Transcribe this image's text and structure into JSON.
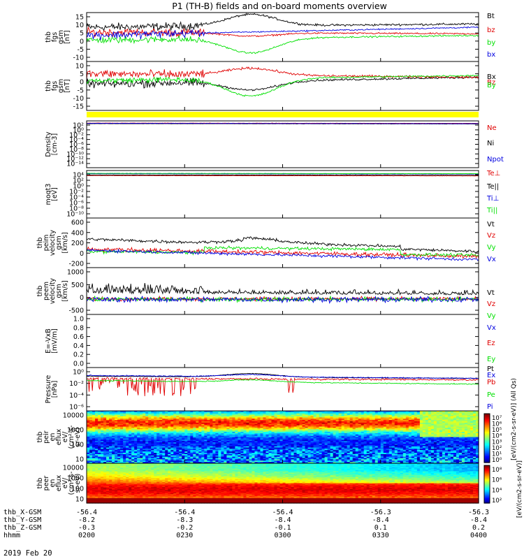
{
  "title": "P1 (TH-B) fields and on-board moments overview",
  "date_label": "2019 Feb 20",
  "colors": {
    "black": "#000000",
    "red": "#e00000",
    "green": "#00e000",
    "blue": "#0000e0",
    "yellow": "#ffff00"
  },
  "chart_data": [
    {
      "type": "line",
      "id": "fgs",
      "ylabel_lines": [
        "thb",
        "fgs",
        "gsm",
        "[nT]"
      ],
      "ylim": [
        -15,
        15
      ],
      "ytick_labels": [
        "15",
        "10",
        "5",
        "0",
        "-5",
        "-10"
      ],
      "series": [
        {
          "name": "Bt",
          "color": "black",
          "kind": "fgs_bt"
        },
        {
          "name": "bz",
          "color": "red",
          "kind": "fgs_bz"
        },
        {
          "name": "by",
          "color": "green",
          "kind": "fgs_by"
        },
        {
          "name": "bx",
          "color": "blue",
          "kind": "fgs_bx"
        }
      ]
    },
    {
      "type": "line",
      "id": "fgs2",
      "ylabel_lines": [
        "thb",
        "fgs",
        "gsm",
        "[nT]"
      ],
      "ylim": [
        -18,
        10
      ],
      "ytick_labels": [
        "10",
        "5",
        "0",
        "-5",
        "-10",
        "-15"
      ],
      "series": [
        {
          "name": "Bx",
          "color": "black",
          "kind": "fgs2_bx"
        },
        {
          "name": "Bz",
          "color": "red",
          "kind": "fgs2_bz"
        },
        {
          "name": "By",
          "color": "green",
          "kind": "fgs2_by"
        }
      ]
    },
    {
      "type": "line",
      "id": "density",
      "log": true,
      "ylabel_lines": [
        "Density",
        "[cm-3]"
      ],
      "ylim_log": [
        -15,
        2
      ],
      "ytick_labels": [
        "10²",
        "10⁰",
        "10⁻²",
        "10⁻⁴",
        "10⁻⁶",
        "10⁻⁸",
        "10⁻¹⁰",
        "10⁻¹²",
        "10⁻¹⁴"
      ],
      "series": [
        {
          "name": "Ne",
          "color": "red",
          "level": 1.2
        },
        {
          "name": "Ni",
          "color": "black",
          "level": 1.0
        },
        {
          "name": "Npot",
          "color": "blue",
          "level": 1.1
        }
      ]
    },
    {
      "type": "line",
      "id": "temp",
      "log": true,
      "ylabel_lines": [
        "moqt3",
        "[eV]"
      ],
      "ylim_log": [
        -11,
        4
      ],
      "ytick_labels": [
        "10⁴",
        "10²",
        "10⁰",
        "10⁻²",
        "10⁻⁴",
        "10⁻⁶",
        "10⁻⁸",
        "10⁻¹⁰"
      ],
      "series": [
        {
          "name": "Te⊥",
          "color": "red",
          "level": 2.4
        },
        {
          "name": "Te||",
          "color": "black",
          "level": 2.6
        },
        {
          "name": "Ti⊥",
          "color": "blue",
          "level": 3.0
        },
        {
          "name": "Ti||",
          "color": "green",
          "level": 3.1
        }
      ]
    },
    {
      "type": "line",
      "id": "peim",
      "ylabel_lines": [
        "thb",
        "peim",
        "velocity",
        "gsm",
        "[km/s]"
      ],
      "ylim": [
        -200,
        600
      ],
      "ytick_labels": [
        "600",
        "400",
        "200",
        "0",
        "-200"
      ],
      "series": [
        {
          "name": "Vt",
          "color": "black",
          "kind": "peim_vt"
        },
        {
          "name": "Vz",
          "color": "red",
          "kind": "peim_vz"
        },
        {
          "name": "Vy",
          "color": "green",
          "kind": "peim_vy"
        },
        {
          "name": "Vx",
          "color": "blue",
          "kind": "peim_vx"
        }
      ]
    },
    {
      "type": "line",
      "id": "peem",
      "ylabel_lines": [
        "thb",
        "peem",
        "velocity",
        "gsm",
        "[km/s]"
      ],
      "ylim": [
        -700,
        1400
      ],
      "ytick_labels": [
        "1000",
        "500",
        "0",
        "-500"
      ],
      "series": [
        {
          "name": "Vt",
          "color": "black",
          "kind": "peem_vt"
        },
        {
          "name": "Vz",
          "color": "red",
          "kind": "peem_vz"
        },
        {
          "name": "Vy",
          "color": "green",
          "kind": "peem_vy"
        },
        {
          "name": "Vx",
          "color": "blue",
          "kind": "peem_vx"
        }
      ]
    },
    {
      "type": "line",
      "id": "efield",
      "ylabel_lines": [
        "E=-VxB",
        "[mV/m]"
      ],
      "ylim": [
        0,
        1
      ],
      "ytick_labels": [
        "1.0",
        "0.8",
        "0.6",
        "0.4",
        "0.2",
        "0.0"
      ],
      "series": [
        {
          "name": "Ez",
          "color": "red"
        },
        {
          "name": "Ey",
          "color": "green"
        },
        {
          "name": "Ex",
          "color": "blue"
        }
      ]
    },
    {
      "type": "line",
      "id": "pressure",
      "log": true,
      "ylabel_lines": [
        "Pressure",
        "[nPa]"
      ],
      "ylim_log": [
        -6,
        0
      ],
      "ytick_labels": [
        "10⁰",
        "10⁻²",
        "10⁻⁴",
        "10⁻⁶"
      ],
      "series": [
        {
          "name": "Pt",
          "color": "black",
          "kind": "p_pt"
        },
        {
          "name": "Pb",
          "color": "red",
          "kind": "p_pb"
        },
        {
          "name": "Pe",
          "color": "green",
          "kind": "p_pe"
        },
        {
          "name": "Pi",
          "color": "blue",
          "kind": "p_pi"
        }
      ]
    },
    {
      "type": "heatmap",
      "id": "peir",
      "ylabel_lines": [
        "thb",
        "peir",
        "en",
        "eflux",
        "eV/",
        "(cm²-s-",
        "sr-eV)"
      ],
      "ytick_labels": [
        "10000",
        "1000",
        "100",
        "10"
      ],
      "kind": "ion"
    },
    {
      "type": "heatmap",
      "id": "peer",
      "ylabel_lines": [
        "thb",
        "peer",
        "en",
        "eflux",
        "eV/",
        "(cm²-s-",
        "sr-eV)"
      ],
      "ytick_labels": [
        "10000",
        "1000",
        "100",
        "10"
      ],
      "kind": "electron"
    }
  ],
  "colorbars": {
    "ion": {
      "labels": [
        "10⁷",
        "10⁶",
        "10⁵",
        "10⁴",
        "10³",
        "10²",
        "10¹",
        "10⁰"
      ]
    },
    "electron": {
      "labels": [
        "10⁸",
        "10⁶",
        "10⁴",
        "10²"
      ]
    },
    "side_label_1": "[eV/(cm2-s-sr-eV)] (All Qs)",
    "side_label_2": "[eV/(cm2-s-sr-eV)]"
  },
  "x_axis": {
    "rows": [
      {
        "label": "thb_X-GSM",
        "values": [
          "-56.4",
          "-56.4",
          "-56.4",
          "-56.3",
          "-56.3"
        ]
      },
      {
        "label": "thb_Y-GSM",
        "values": [
          "-8.2",
          "-8.3",
          "-8.4",
          "-8.4",
          "-8.4"
        ]
      },
      {
        "label": "thb_Z-GSM",
        "values": [
          "-0.3",
          "-0.2",
          "-0.1",
          "0.1",
          "0.2"
        ]
      },
      {
        "label": "hhmm",
        "values": [
          "0200",
          "0230",
          "0300",
          "0330",
          "0400"
        ]
      }
    ]
  }
}
